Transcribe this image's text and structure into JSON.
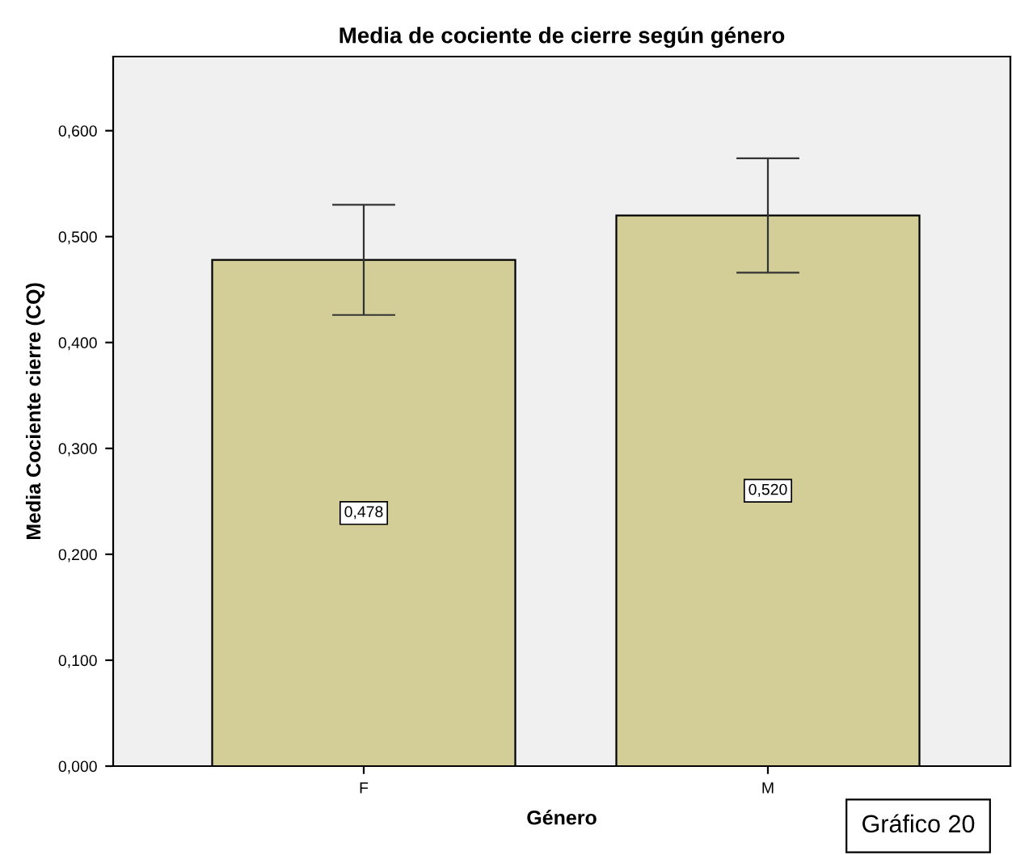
{
  "chart_data": {
    "type": "bar",
    "title": "Media de cociente de cierre según género",
    "xlabel": "Género",
    "ylabel": "Media Cociente cierre (CQ)",
    "categories": [
      "F",
      "M"
    ],
    "values": [
      0.478,
      0.52
    ],
    "errors": [
      0.052,
      0.054
    ],
    "value_labels": [
      "0,478",
      "0,520"
    ],
    "color": "#d3ce97",
    "ylim": [
      0,
      0.67
    ],
    "yticks": [
      {
        "value": 0,
        "label": "0,000"
      },
      {
        "value": 0.1,
        "label": "0,100"
      },
      {
        "value": 0.2,
        "label": "0,200"
      },
      {
        "value": 0.3,
        "label": "0,300"
      },
      {
        "value": 0.4,
        "label": "0,400"
      },
      {
        "value": 0.5,
        "label": "0,500"
      },
      {
        "value": 0.6,
        "label": "0,600"
      }
    ],
    "grid": false,
    "annotations": [
      "Gráfico 20"
    ]
  }
}
